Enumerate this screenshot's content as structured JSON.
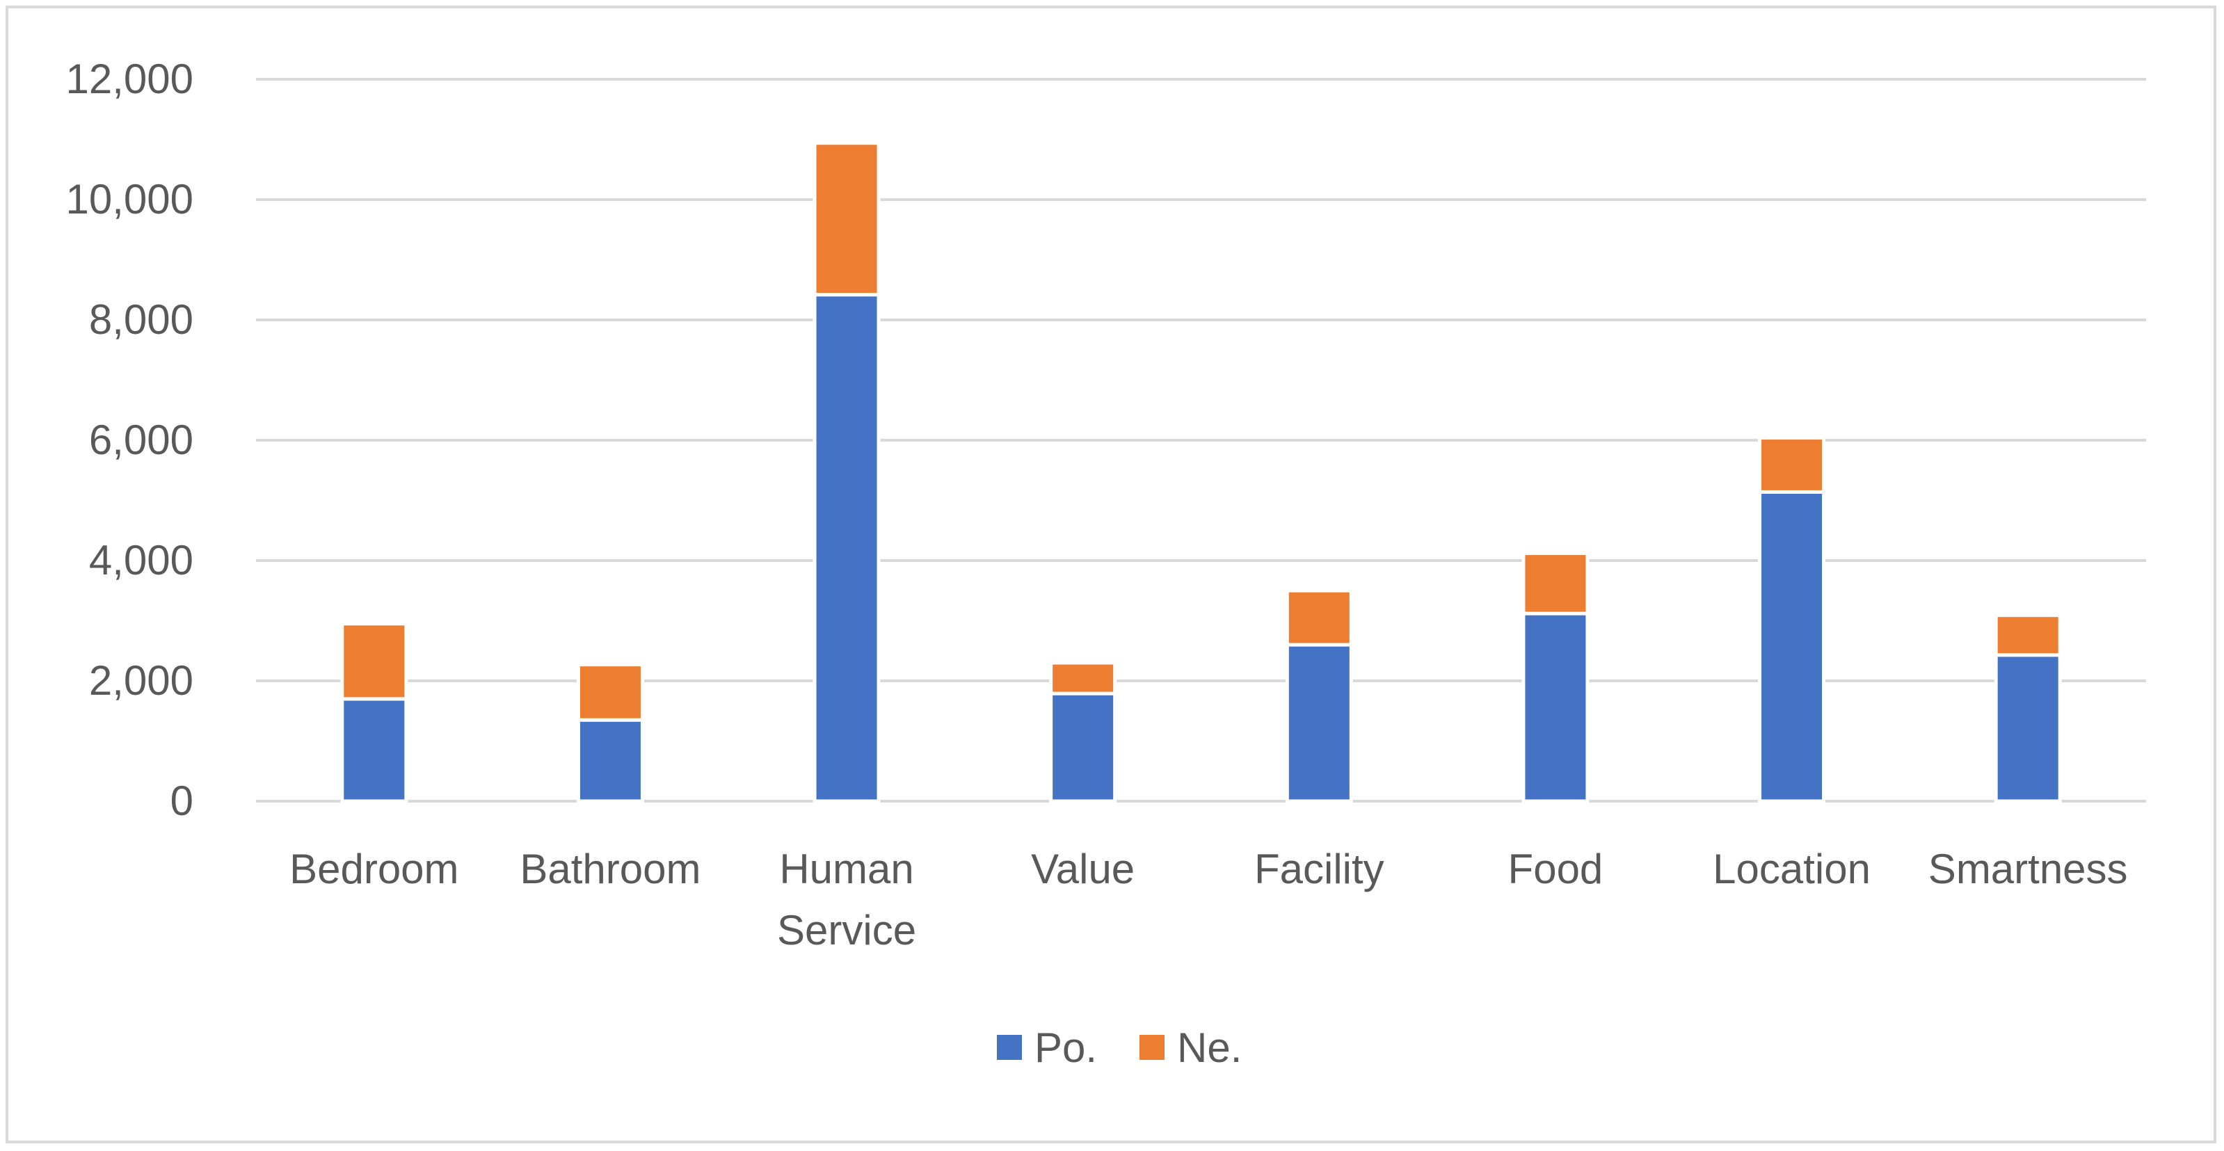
{
  "chart_data": {
    "type": "bar",
    "stacked": true,
    "title": "",
    "xlabel": "",
    "ylabel": "",
    "categories": [
      [
        "Bedroom"
      ],
      [
        "Bathroom"
      ],
      [
        "Human",
        "Service"
      ],
      [
        "Value"
      ],
      [
        "Facility"
      ],
      [
        "Food"
      ],
      [
        "Location"
      ],
      [
        "Smartness"
      ]
    ],
    "series": [
      {
        "name": "Po.",
        "color": "#4472c4",
        "values": [
          1700,
          1350,
          8420,
          1790,
          2600,
          3120,
          5140,
          2430
        ]
      },
      {
        "name": "Ne.",
        "color": "#ed7d31",
        "values": [
          1250,
          920,
          2520,
          510,
          900,
          1000,
          900,
          660
        ]
      }
    ],
    "ylim": [
      0,
      12000
    ],
    "yticks": [
      "0",
      "2,000",
      "4,000",
      "6,000",
      "8,000",
      "10,000",
      "12,000"
    ],
    "ytick_values": [
      0,
      2000,
      4000,
      6000,
      8000,
      10000,
      12000
    ],
    "grid": true,
    "legend_position": "bottom"
  }
}
